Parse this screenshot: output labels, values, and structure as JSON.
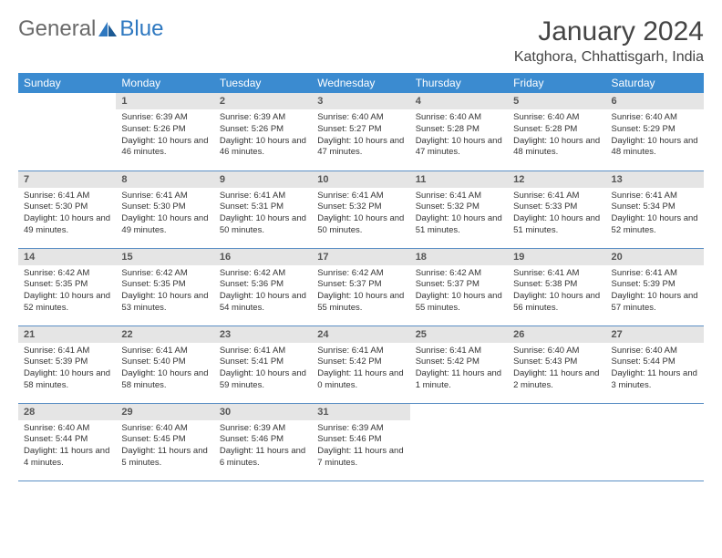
{
  "logo": {
    "part1": "General",
    "part2": "Blue"
  },
  "title": "January 2024",
  "location": "Katghora, Chhattisgarh, India",
  "colors": {
    "header_bg": "#3b8bd0",
    "header_text": "#ffffff",
    "daynum_bg": "#e5e5e5",
    "row_border": "#5a8fc4",
    "logo_gray": "#6a6a6a",
    "logo_blue": "#2e78c0"
  },
  "weekdays": [
    "Sunday",
    "Monday",
    "Tuesday",
    "Wednesday",
    "Thursday",
    "Friday",
    "Saturday"
  ],
  "start_offset": 1,
  "days": [
    {
      "n": 1,
      "sunrise": "6:39 AM",
      "sunset": "5:26 PM",
      "daylight": "10 hours and 46 minutes."
    },
    {
      "n": 2,
      "sunrise": "6:39 AM",
      "sunset": "5:26 PM",
      "daylight": "10 hours and 46 minutes."
    },
    {
      "n": 3,
      "sunrise": "6:40 AM",
      "sunset": "5:27 PM",
      "daylight": "10 hours and 47 minutes."
    },
    {
      "n": 4,
      "sunrise": "6:40 AM",
      "sunset": "5:28 PM",
      "daylight": "10 hours and 47 minutes."
    },
    {
      "n": 5,
      "sunrise": "6:40 AM",
      "sunset": "5:28 PM",
      "daylight": "10 hours and 48 minutes."
    },
    {
      "n": 6,
      "sunrise": "6:40 AM",
      "sunset": "5:29 PM",
      "daylight": "10 hours and 48 minutes."
    },
    {
      "n": 7,
      "sunrise": "6:41 AM",
      "sunset": "5:30 PM",
      "daylight": "10 hours and 49 minutes."
    },
    {
      "n": 8,
      "sunrise": "6:41 AM",
      "sunset": "5:30 PM",
      "daylight": "10 hours and 49 minutes."
    },
    {
      "n": 9,
      "sunrise": "6:41 AM",
      "sunset": "5:31 PM",
      "daylight": "10 hours and 50 minutes."
    },
    {
      "n": 10,
      "sunrise": "6:41 AM",
      "sunset": "5:32 PM",
      "daylight": "10 hours and 50 minutes."
    },
    {
      "n": 11,
      "sunrise": "6:41 AM",
      "sunset": "5:32 PM",
      "daylight": "10 hours and 51 minutes."
    },
    {
      "n": 12,
      "sunrise": "6:41 AM",
      "sunset": "5:33 PM",
      "daylight": "10 hours and 51 minutes."
    },
    {
      "n": 13,
      "sunrise": "6:41 AM",
      "sunset": "5:34 PM",
      "daylight": "10 hours and 52 minutes."
    },
    {
      "n": 14,
      "sunrise": "6:42 AM",
      "sunset": "5:35 PM",
      "daylight": "10 hours and 52 minutes."
    },
    {
      "n": 15,
      "sunrise": "6:42 AM",
      "sunset": "5:35 PM",
      "daylight": "10 hours and 53 minutes."
    },
    {
      "n": 16,
      "sunrise": "6:42 AM",
      "sunset": "5:36 PM",
      "daylight": "10 hours and 54 minutes."
    },
    {
      "n": 17,
      "sunrise": "6:42 AM",
      "sunset": "5:37 PM",
      "daylight": "10 hours and 55 minutes."
    },
    {
      "n": 18,
      "sunrise": "6:42 AM",
      "sunset": "5:37 PM",
      "daylight": "10 hours and 55 minutes."
    },
    {
      "n": 19,
      "sunrise": "6:41 AM",
      "sunset": "5:38 PM",
      "daylight": "10 hours and 56 minutes."
    },
    {
      "n": 20,
      "sunrise": "6:41 AM",
      "sunset": "5:39 PM",
      "daylight": "10 hours and 57 minutes."
    },
    {
      "n": 21,
      "sunrise": "6:41 AM",
      "sunset": "5:39 PM",
      "daylight": "10 hours and 58 minutes."
    },
    {
      "n": 22,
      "sunrise": "6:41 AM",
      "sunset": "5:40 PM",
      "daylight": "10 hours and 58 minutes."
    },
    {
      "n": 23,
      "sunrise": "6:41 AM",
      "sunset": "5:41 PM",
      "daylight": "10 hours and 59 minutes."
    },
    {
      "n": 24,
      "sunrise": "6:41 AM",
      "sunset": "5:42 PM",
      "daylight": "11 hours and 0 minutes."
    },
    {
      "n": 25,
      "sunrise": "6:41 AM",
      "sunset": "5:42 PM",
      "daylight": "11 hours and 1 minute."
    },
    {
      "n": 26,
      "sunrise": "6:40 AM",
      "sunset": "5:43 PM",
      "daylight": "11 hours and 2 minutes."
    },
    {
      "n": 27,
      "sunrise": "6:40 AM",
      "sunset": "5:44 PM",
      "daylight": "11 hours and 3 minutes."
    },
    {
      "n": 28,
      "sunrise": "6:40 AM",
      "sunset": "5:44 PM",
      "daylight": "11 hours and 4 minutes."
    },
    {
      "n": 29,
      "sunrise": "6:40 AM",
      "sunset": "5:45 PM",
      "daylight": "11 hours and 5 minutes."
    },
    {
      "n": 30,
      "sunrise": "6:39 AM",
      "sunset": "5:46 PM",
      "daylight": "11 hours and 6 minutes."
    },
    {
      "n": 31,
      "sunrise": "6:39 AM",
      "sunset": "5:46 PM",
      "daylight": "11 hours and 7 minutes."
    }
  ],
  "labels": {
    "sunrise": "Sunrise:",
    "sunset": "Sunset:",
    "daylight": "Daylight:"
  }
}
